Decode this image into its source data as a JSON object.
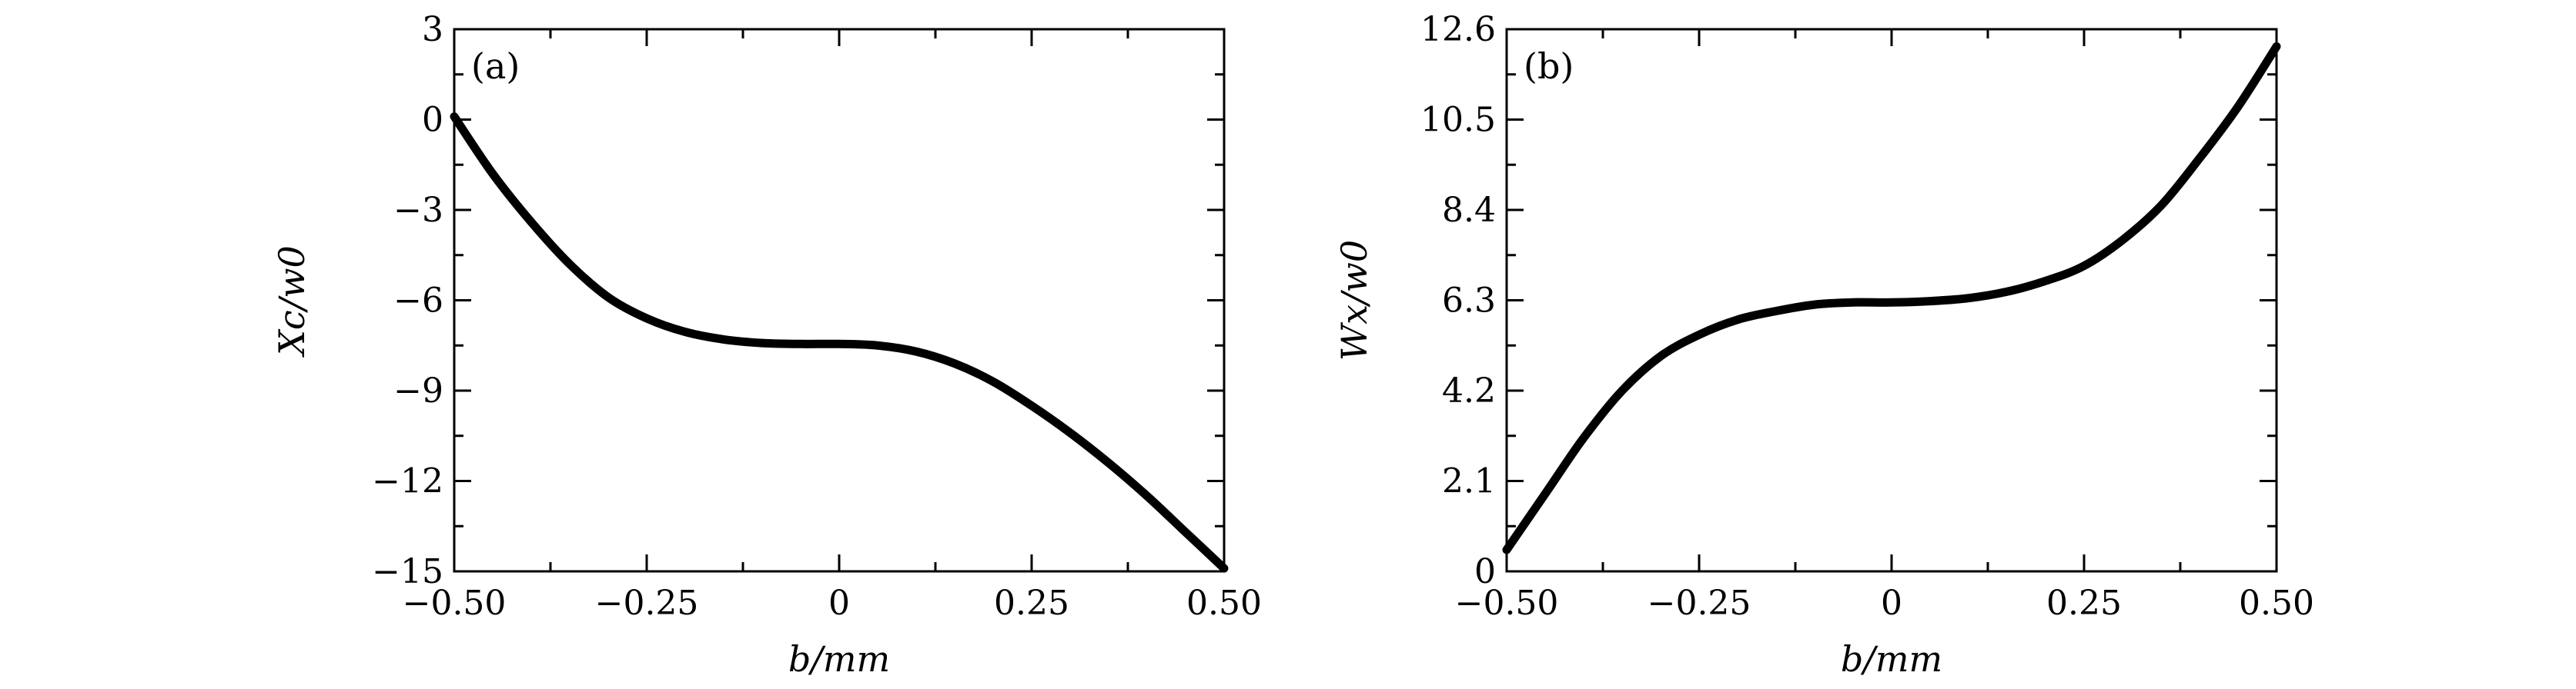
{
  "chart_data": [
    {
      "type": "line",
      "panel_label": "(a)",
      "xlabel": "b/mm",
      "ylabel": "Xc/w0",
      "xlim": [
        -0.5,
        0.5
      ],
      "ylim": [
        -15,
        3
      ],
      "xticks": [
        -0.5,
        -0.25,
        0,
        0.25,
        0.5
      ],
      "xtick_labels": [
        "−0.50",
        "−0.25",
        "0",
        "0.25",
        "0.50"
      ],
      "yticks": [
        -15,
        -12,
        -9,
        -6,
        -3,
        0,
        3
      ],
      "ytick_labels": [
        "−15",
        "−12",
        "−9",
        "−6",
        "−3",
        "0",
        "3"
      ],
      "grid": false,
      "series": [
        {
          "x": [
            -0.5,
            -0.45,
            -0.4,
            -0.35,
            -0.3,
            -0.25,
            -0.2,
            -0.15,
            -0.1,
            -0.05,
            0,
            0.05,
            0.1,
            0.15,
            0.2,
            0.25,
            0.3,
            0.35,
            0.4,
            0.45,
            0.5
          ],
          "y": [
            0.1,
            -1.8,
            -3.4,
            -4.8,
            -5.9,
            -6.6,
            -7.05,
            -7.3,
            -7.42,
            -7.45,
            -7.45,
            -7.5,
            -7.7,
            -8.1,
            -8.7,
            -9.5,
            -10.4,
            -11.4,
            -12.5,
            -13.7,
            -14.9
          ]
        }
      ]
    },
    {
      "type": "line",
      "panel_label": "(b)",
      "xlabel": "b/mm",
      "ylabel": "Wx/w0",
      "xlim": [
        -0.5,
        0.5
      ],
      "ylim": [
        0,
        12.6
      ],
      "xticks": [
        -0.5,
        -0.25,
        0,
        0.25,
        0.5
      ],
      "xtick_labels": [
        "−0.50",
        "−0.25",
        "0",
        "0.25",
        "0.50"
      ],
      "yticks": [
        0,
        2.1,
        4.2,
        6.3,
        8.4,
        10.5,
        12.6
      ],
      "ytick_labels": [
        "0",
        "2.1",
        "4.2",
        "6.3",
        "8.4",
        "10.5",
        "12.6"
      ],
      "grid": false,
      "series": [
        {
          "x": [
            -0.5,
            -0.45,
            -0.4,
            -0.35,
            -0.3,
            -0.25,
            -0.2,
            -0.15,
            -0.1,
            -0.05,
            0,
            0.05,
            0.1,
            0.15,
            0.2,
            0.25,
            0.3,
            0.35,
            0.4,
            0.45,
            0.5
          ],
          "y": [
            0.5,
            1.8,
            3.1,
            4.2,
            5.0,
            5.5,
            5.85,
            6.05,
            6.2,
            6.25,
            6.25,
            6.28,
            6.35,
            6.5,
            6.75,
            7.1,
            7.7,
            8.5,
            9.6,
            10.8,
            12.2
          ]
        }
      ]
    }
  ]
}
